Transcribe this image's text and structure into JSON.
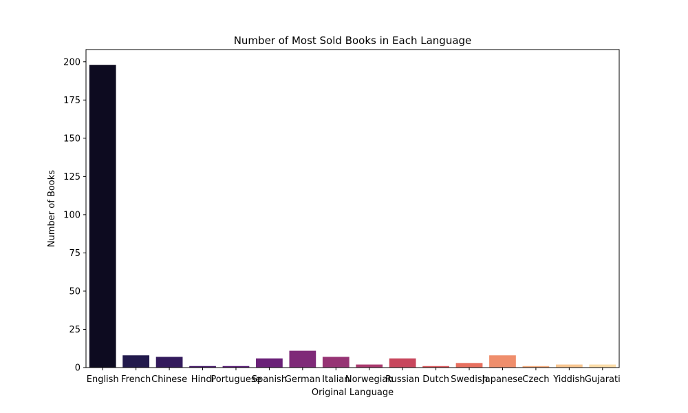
{
  "chart_data": {
    "type": "bar",
    "title": "Number of Most Sold Books in Each Language",
    "xlabel": "Original Language",
    "ylabel": "Number of Books",
    "categories": [
      "English",
      "French",
      "Chinese",
      "Hindi",
      "Portuguese",
      "Spanish",
      "German",
      "Italian",
      "Norwegian",
      "Russian",
      "Dutch",
      "Swedish",
      "Japanese",
      "Czech",
      "Yiddish",
      "Gujarati"
    ],
    "values": [
      198,
      8,
      7,
      1,
      1,
      6,
      11,
      7,
      2,
      6,
      1,
      3,
      8,
      1,
      2,
      2
    ],
    "colors": [
      "#0d0b20",
      "#221a4c",
      "#331a5c",
      "#4a1c6c",
      "#5b1e78",
      "#6a2178",
      "#7f2a78",
      "#963474",
      "#ab3a6f",
      "#c8475d",
      "#db5a5f",
      "#e8705f",
      "#ef8e6c",
      "#f5ad7e",
      "#f8c690",
      "#fbdca8"
    ],
    "yticks": [
      0,
      25,
      50,
      75,
      100,
      125,
      150,
      175,
      200
    ],
    "ylim": [
      0,
      208
    ],
    "grid": false,
    "legend": "none"
  }
}
